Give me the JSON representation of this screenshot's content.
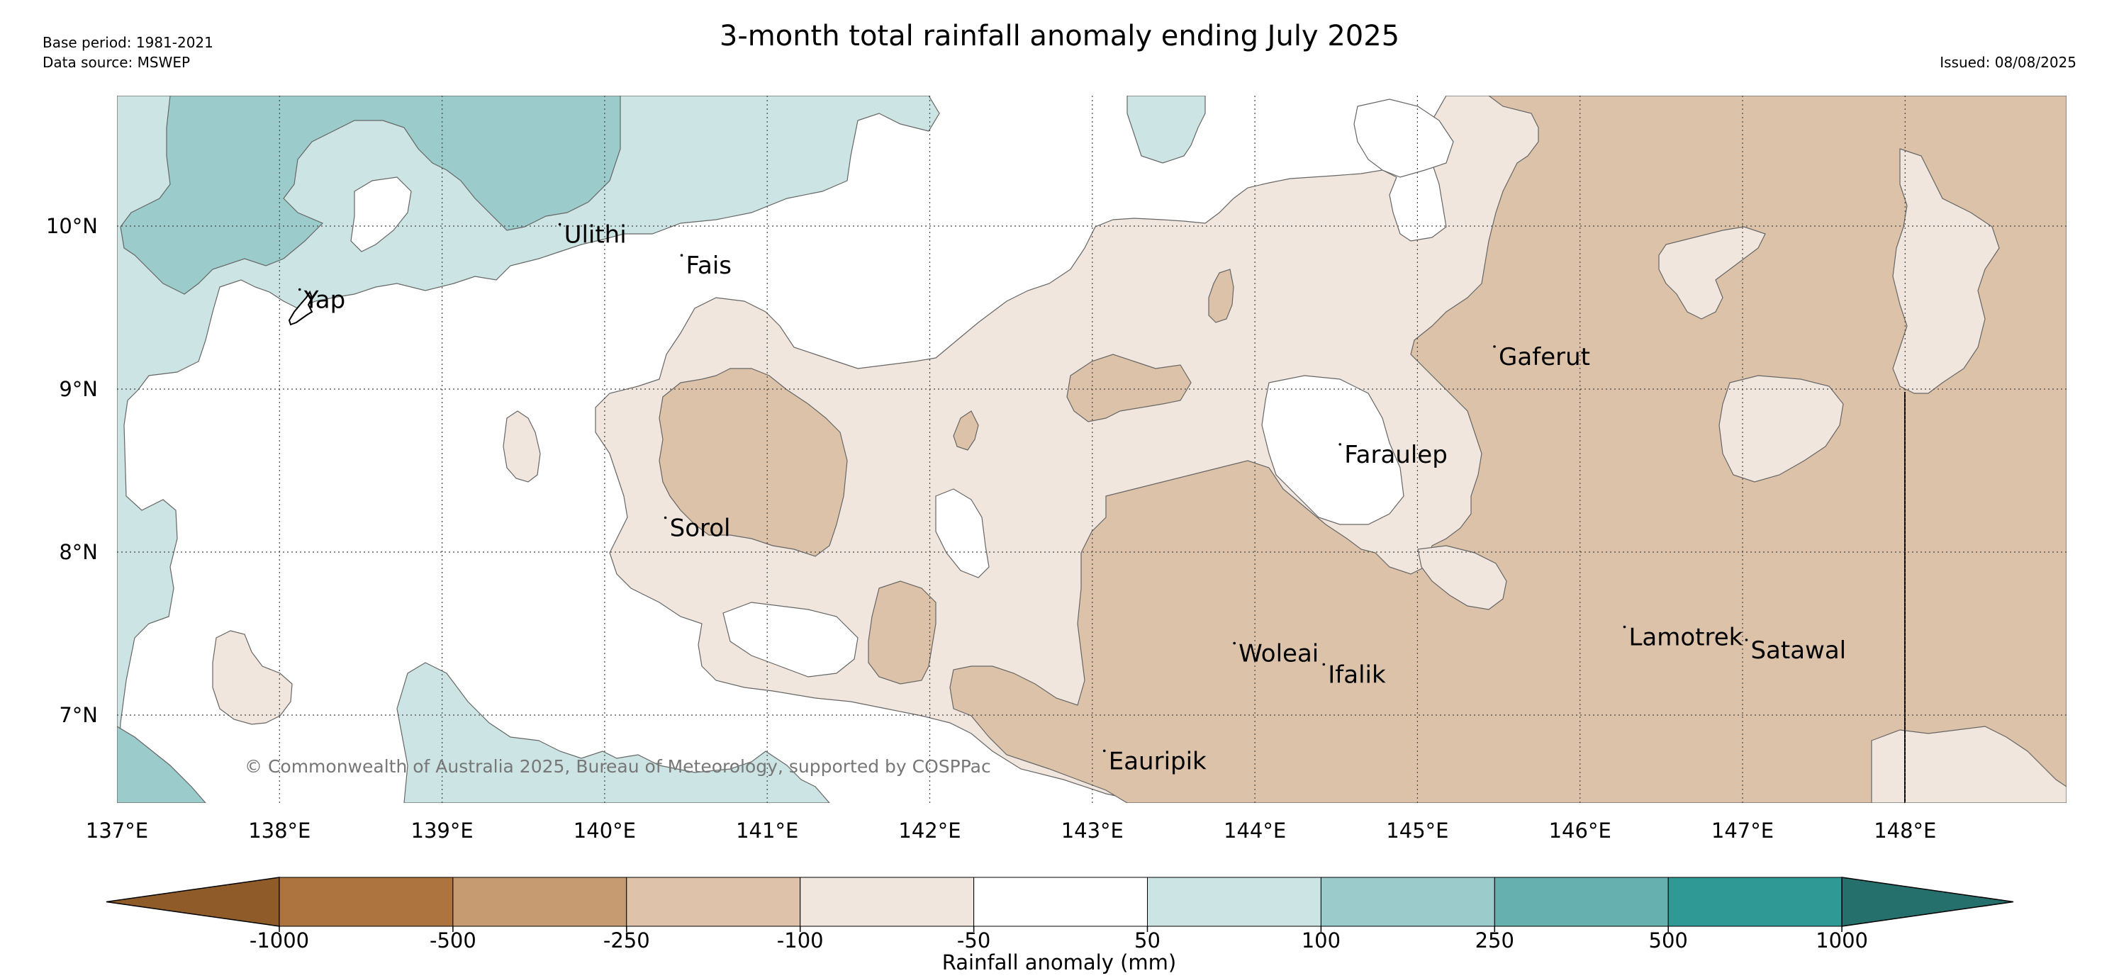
{
  "header": {
    "title": "3-month total rainfall anomaly ending July 2025",
    "base_period": "Base period: 1981-2021",
    "data_source": "Data source: MSWEP",
    "issued": "Issued: 08/08/2025"
  },
  "map": {
    "copyright": "© Commonwealth of Australia 2025, Bureau of Meteorology, supported by COSPPac",
    "lon_ticks": [
      "137°E",
      "138°E",
      "139°E",
      "140°E",
      "141°E",
      "142°E",
      "143°E",
      "144°E",
      "145°E",
      "146°E",
      "147°E",
      "148°E"
    ],
    "lat_ticks": [
      "10°N",
      "9°N",
      "8°N",
      "7°N"
    ],
    "places": [
      {
        "name": "Ulithi",
        "lon": 139.75,
        "lat": 9.95
      },
      {
        "name": "Fais",
        "lon": 140.5,
        "lat": 9.76
      },
      {
        "name": "Yap",
        "lon": 138.15,
        "lat": 9.55
      },
      {
        "name": "Gaferut",
        "lon": 145.5,
        "lat": 9.2
      },
      {
        "name": "Faraulep",
        "lon": 144.55,
        "lat": 8.6
      },
      {
        "name": "Sorol",
        "lon": 140.4,
        "lat": 8.15
      },
      {
        "name": "Woleai",
        "lon": 143.9,
        "lat": 7.38
      },
      {
        "name": "Ifalik",
        "lon": 144.45,
        "lat": 7.25
      },
      {
        "name": "Lamotrek",
        "lon": 146.3,
        "lat": 7.48
      },
      {
        "name": "Satawal",
        "lon": 147.05,
        "lat": 7.4
      },
      {
        "name": "Eauripik",
        "lon": 143.1,
        "lat": 6.72
      }
    ],
    "colors": {
      "dry_1000": "#a6692f",
      "dry_500": "#c49a6e",
      "dry_250": "#dcc2a8",
      "dry_100": "#f1e6dd",
      "neutral": "#ffffff",
      "wet_100": "#cce5e4",
      "wet_250": "#9bcbcb",
      "wet_500": "#66b1b0",
      "wet_1000": "#2f9a95"
    }
  },
  "colorbar": {
    "label": "Rainfall anomaly (mm)",
    "ticks": [
      "-1000",
      "-500",
      "-250",
      "-100",
      "-50",
      "50",
      "100",
      "250",
      "500",
      "1000"
    ],
    "colors": [
      "#8f5b28",
      "#ad7440",
      "#c69b71",
      "#dec2a9",
      "#f1e6dd",
      "#ffffff",
      "#cce5e4",
      "#9bcbcb",
      "#66b1b0",
      "#2f9a95",
      "#25706c"
    ]
  }
}
